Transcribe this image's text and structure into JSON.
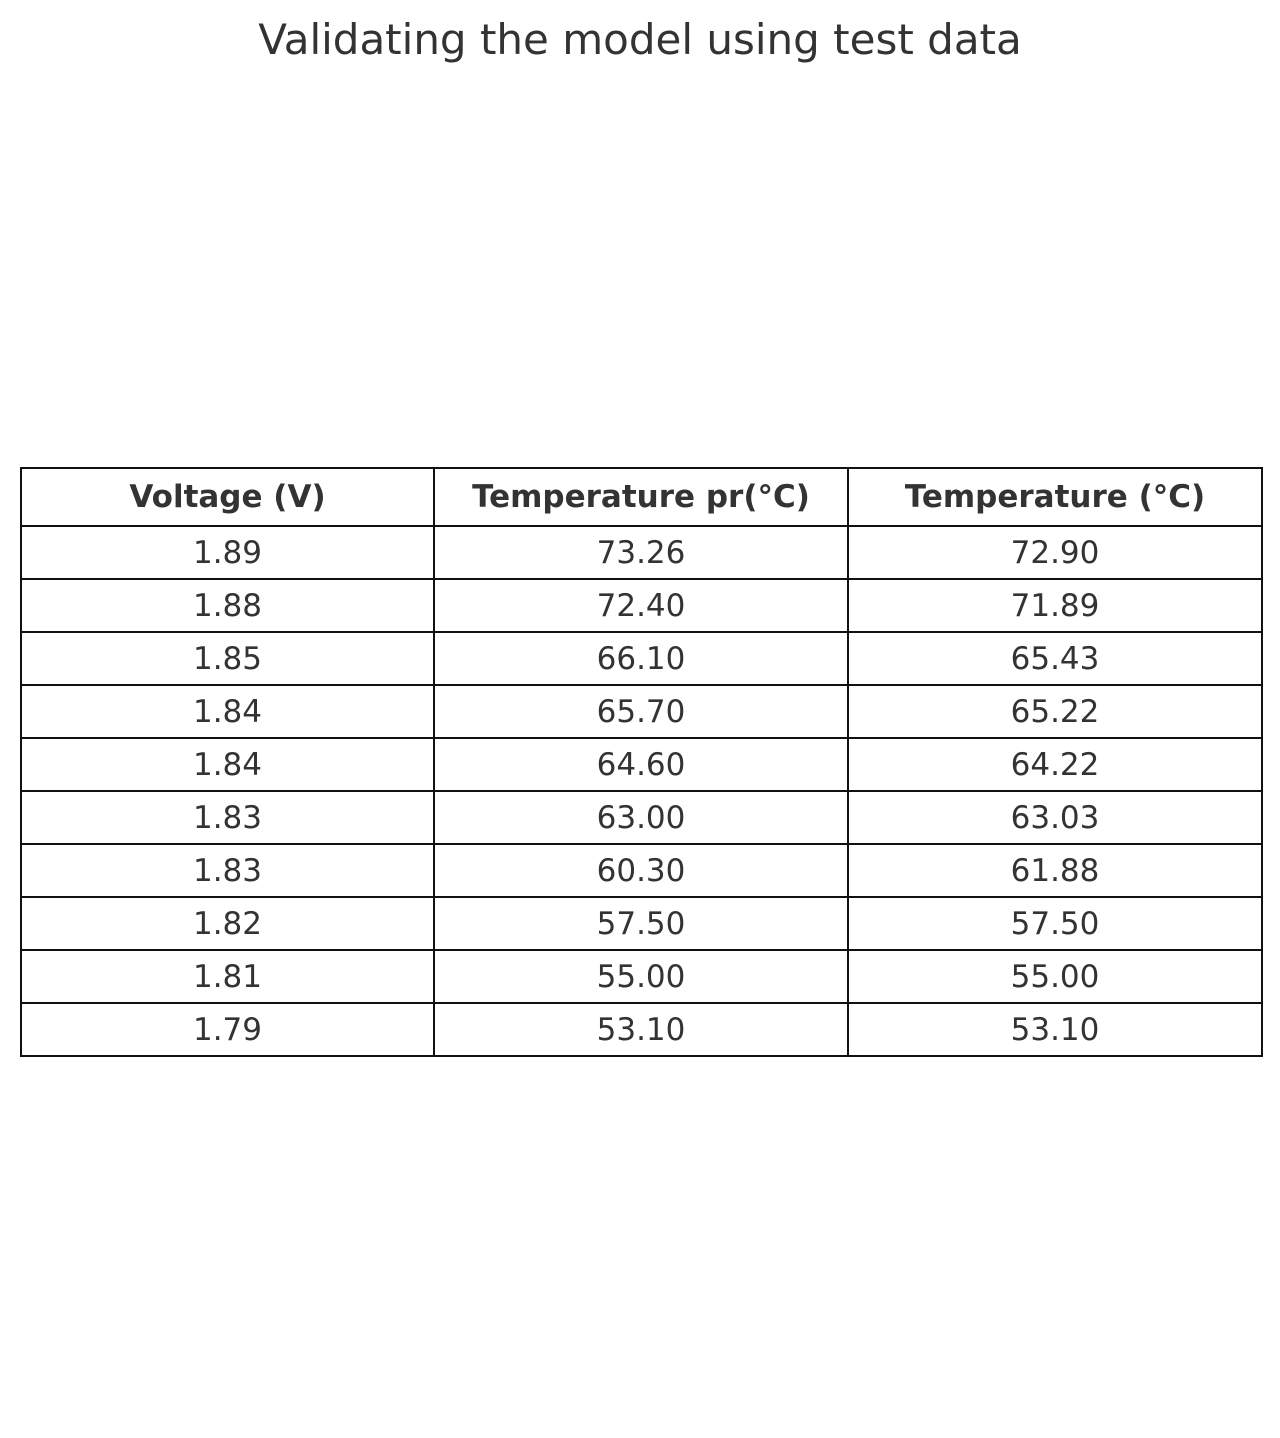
{
  "chart_data": {
    "type": "table",
    "title": "Validating the model using test data",
    "columns": [
      "Voltage (V)",
      "Temperature pr(°C)",
      "Temperature (°C)"
    ],
    "rows": [
      [
        "1.89",
        "73.26",
        "72.90"
      ],
      [
        "1.88",
        "72.40",
        "71.89"
      ],
      [
        "1.85",
        "66.10",
        "65.43"
      ],
      [
        "1.84",
        "65.70",
        "65.22"
      ],
      [
        "1.84",
        "64.60",
        "64.22"
      ],
      [
        "1.83",
        "63.00",
        "63.03"
      ],
      [
        "1.83",
        "60.30",
        "61.88"
      ],
      [
        "1.82",
        "57.50",
        "57.50"
      ],
      [
        "1.81",
        "55.00",
        "55.00"
      ],
      [
        "1.79",
        "53.10",
        "53.10"
      ]
    ]
  }
}
